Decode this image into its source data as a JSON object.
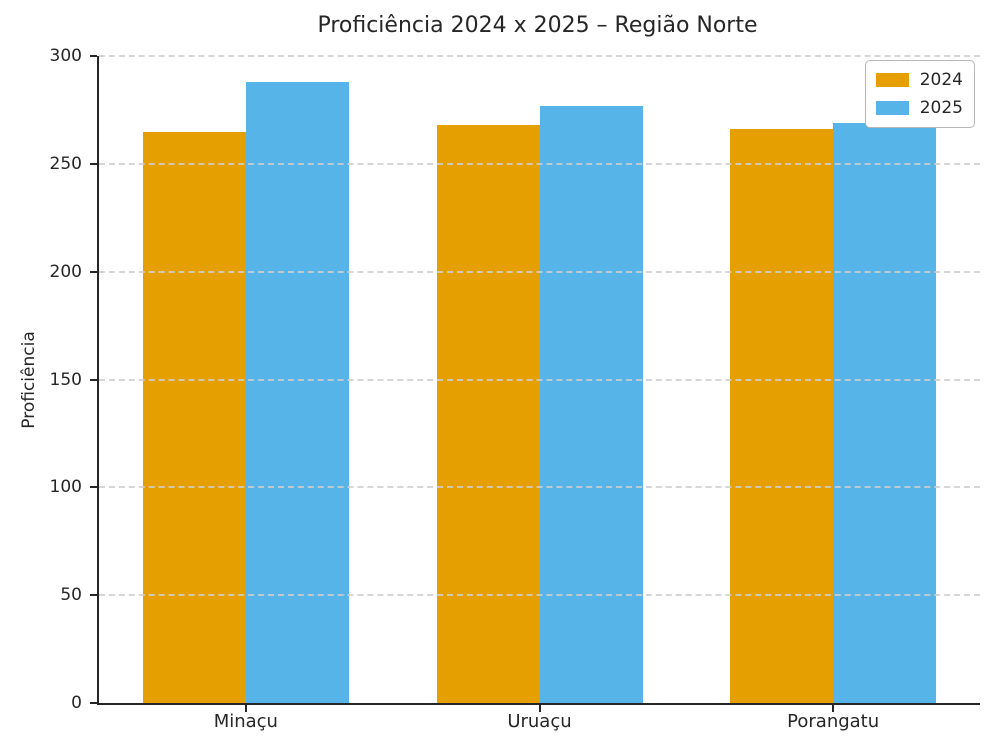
{
  "chart_data": {
    "type": "bar",
    "title": "Proficiência 2024 x 2025 – Região Norte",
    "ylabel": "Proficiência",
    "xlabel": "",
    "categories": [
      "Minaçu",
      "Uruaçu",
      "Porangatu"
    ],
    "series": [
      {
        "name": "2024",
        "color": "#E69F00",
        "values": [
          265,
          268,
          266
        ]
      },
      {
        "name": "2025",
        "color": "#56B4E9",
        "values": [
          288,
          277,
          269
        ]
      }
    ],
    "ylim": [
      0,
      300
    ],
    "yticks": [
      0,
      50,
      100,
      150,
      200,
      250,
      300
    ],
    "grid": "horizontal dashed gridlines drawn over bars",
    "legend_position": "upper right",
    "bar_width_fraction": 0.35
  },
  "colors": {
    "text": "#262626",
    "spine": "#262626",
    "grid": "#cfcfcf",
    "background": "#ffffff"
  }
}
